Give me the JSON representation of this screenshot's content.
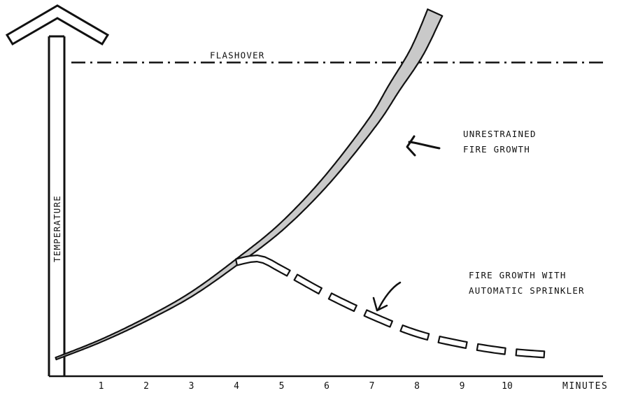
{
  "chart_data": {
    "type": "line",
    "title": "",
    "xlabel": "MINUTES",
    "ylabel": "TEMPERATURE",
    "categories": [
      "1",
      "2",
      "3",
      "4",
      "5",
      "6",
      "7",
      "8",
      "9",
      "10"
    ],
    "xlim": [
      0,
      11.5
    ],
    "ylim": [
      0,
      100
    ],
    "grid": false,
    "legend": "none",
    "reference_line": {
      "label": "FLASHOVER",
      "y": 86
    },
    "series": [
      {
        "label": "UNRESTRAINED FIRE GROWTH",
        "style": "solid-band",
        "color": "#111111",
        "fill": "#c9c9c9",
        "x": [
          0,
          1,
          2,
          3,
          4,
          5,
          6,
          7,
          7.5,
          8,
          8.4
        ],
        "y": [
          3,
          8,
          14,
          21,
          30,
          40,
          53,
          69,
          79,
          89,
          100
        ]
      },
      {
        "label": "FIRE GROWTH WITH AUTOMATIC SPRINKLER",
        "style": "dashed-band",
        "color": "#111111",
        "x": [
          4,
          4.5,
          5,
          6,
          7,
          8,
          9,
          10,
          11
        ],
        "y": [
          30,
          31,
          28,
          21,
          15,
          10,
          7,
          5,
          4
        ]
      }
    ]
  }
}
